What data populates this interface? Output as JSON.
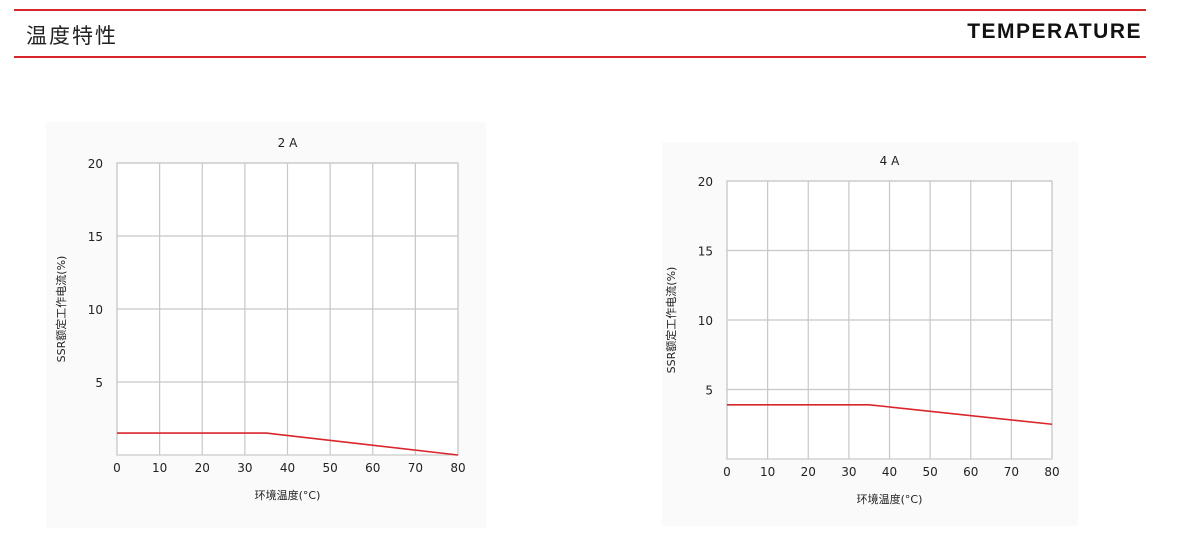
{
  "header": {
    "title_cn": "温度特性",
    "title_en": "TEMPERATURE",
    "accent": "#d9262c"
  },
  "chart_data": [
    {
      "type": "line",
      "title": "2 A",
      "xlabel": "环境温度(°C)",
      "ylabel": "SSR额定工作电流(%)",
      "xlim": [
        0,
        80
      ],
      "ylim": [
        0,
        20
      ],
      "xticks": [
        0,
        10,
        20,
        30,
        40,
        50,
        60,
        70,
        80
      ],
      "yticks": [
        5,
        10,
        15,
        20
      ],
      "grid": true,
      "series": [
        {
          "color": "#d9262c",
          "points": [
            [
              0,
              1.5
            ],
            [
              35,
              1.5
            ],
            [
              80,
              0
            ]
          ]
        }
      ]
    },
    {
      "type": "line",
      "title": "4 A",
      "xlabel": "环境温度(°C)",
      "ylabel": "SSR额定工作电流(%)",
      "xlim": [
        0,
        80
      ],
      "ylim": [
        0,
        20
      ],
      "xticks": [
        0,
        10,
        20,
        30,
        40,
        50,
        60,
        70,
        80
      ],
      "yticks": [
        5,
        10,
        15,
        20
      ],
      "grid": true,
      "series": [
        {
          "color": "#d9262c",
          "points": [
            [
              0,
              3.9
            ],
            [
              35,
              3.9
            ],
            [
              80,
              2.5
            ]
          ]
        }
      ]
    }
  ]
}
